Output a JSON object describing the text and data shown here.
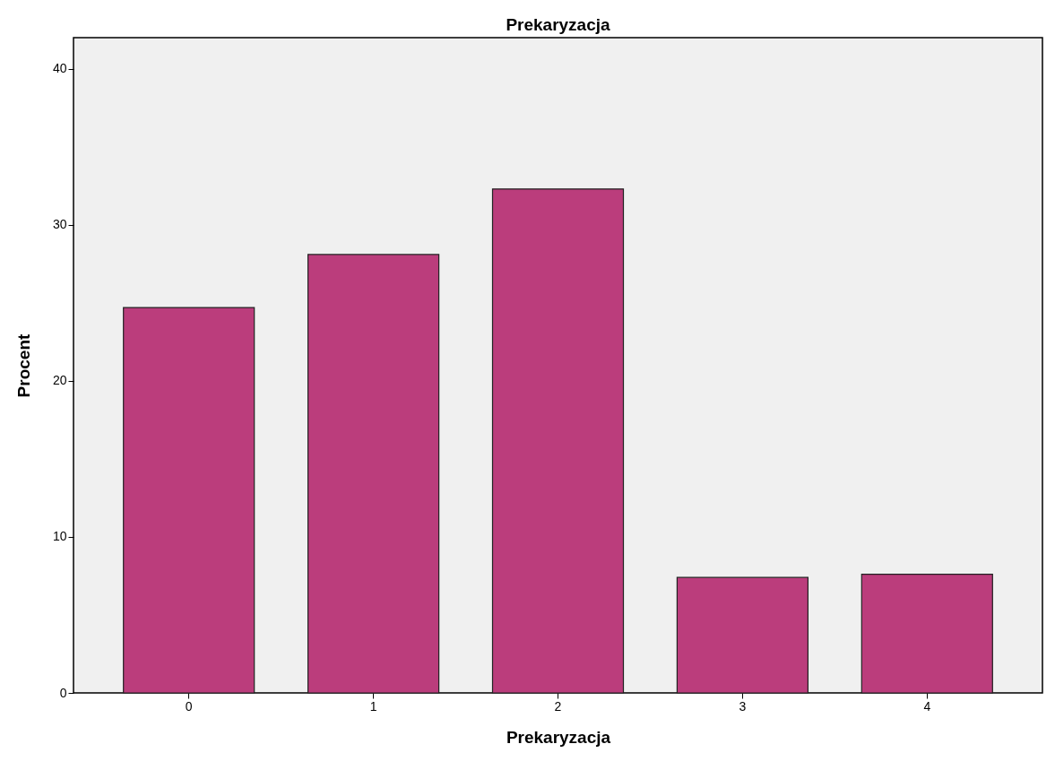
{
  "chart_data": {
    "type": "bar",
    "title": "Prekaryzacja",
    "xlabel": "Prekaryzacja",
    "ylabel": "Procent",
    "categories": [
      "0",
      "1",
      "2",
      "3",
      "4"
    ],
    "values": [
      24.7,
      28.1,
      32.3,
      7.4,
      7.6
    ],
    "color": "#bb3d7c",
    "ylim": [
      0,
      42
    ],
    "yticks": [
      0,
      10,
      20,
      30,
      40
    ],
    "grid": false
  }
}
